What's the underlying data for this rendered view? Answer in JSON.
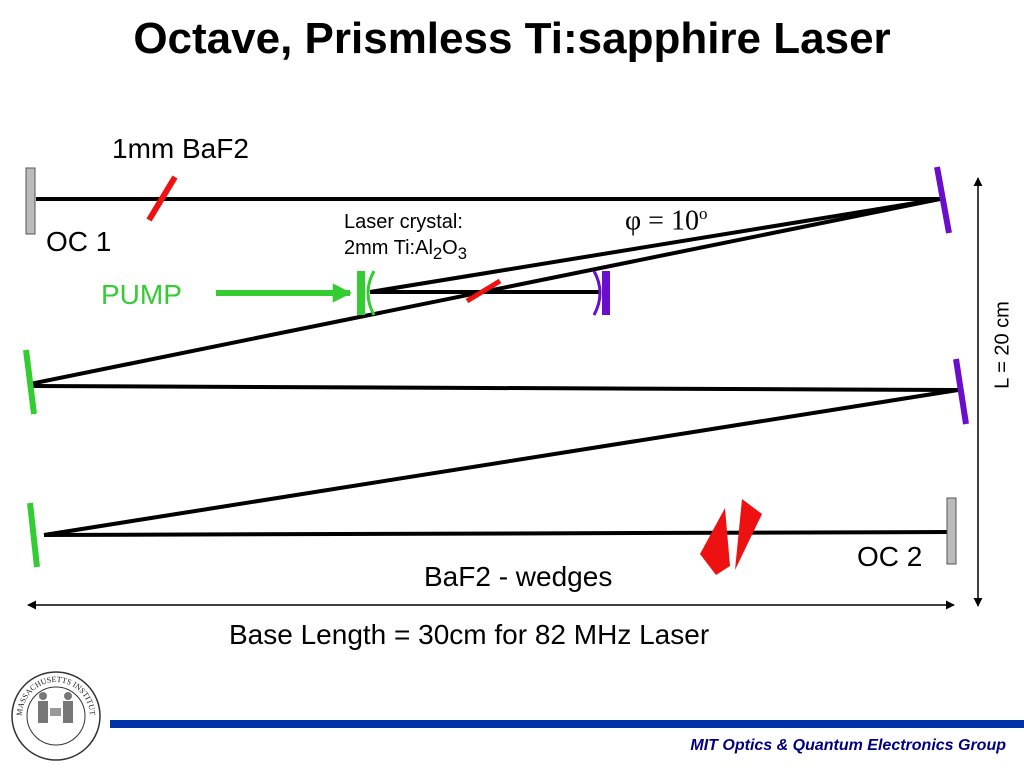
{
  "slide": {
    "title": "Octave, Prismless Ti:sapphire Laser",
    "footer": "MIT Optics & Quantum Electronics Group"
  },
  "labels": {
    "baf2_plate": "1mm BaF2",
    "oc1": "OC 1",
    "pump": "PUMP",
    "crystal_line1": "Laser crystal:",
    "crystal_line2_prefix": "2mm Ti:Al",
    "crystal_sub1": "2",
    "crystal_mid": "O",
    "crystal_sub2": "3",
    "angle_symbol": "φ",
    "angle_eq": "=",
    "angle_value": "10",
    "angle_unit": "o",
    "oc2": "OC 2",
    "wedges": "BaF2 - wedges",
    "height": "L = 20 cm",
    "base_length": "Base Length = 30cm for 82 MHz Laser"
  },
  "logo": {
    "text": "MASSACHUSETTS INSTITUTE OF TECHNOLOGY"
  },
  "colors": {
    "beam": "#000000",
    "output_coupler": "#bbbbbb",
    "green_mirror": "#33cc33",
    "purple_mirror": "#6a0dcc",
    "red_element": "#ee1111",
    "footer_bar": "#0033aa",
    "footer_text": "#000080"
  }
}
